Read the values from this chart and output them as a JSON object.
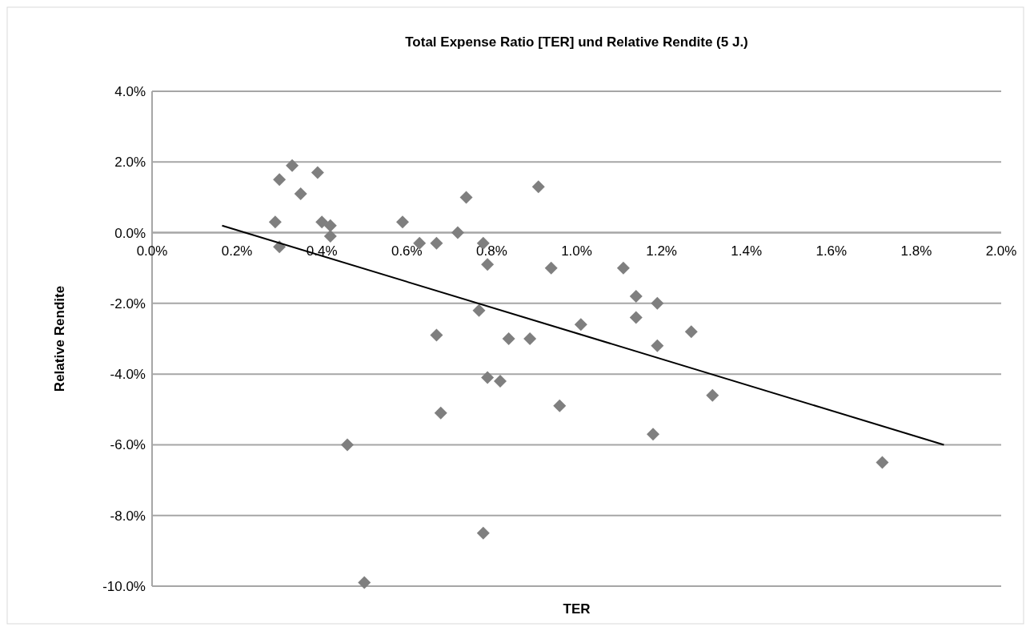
{
  "chart_data": {
    "type": "scatter",
    "title": "Total Expense Ratio [TER] und Relative Rendite (5 J.)",
    "xlabel": "TER",
    "ylabel": "Relative Rendite",
    "xlim": [
      0,
      2
    ],
    "ylim": [
      -10,
      4
    ],
    "xticks": [
      {
        "value": 0,
        "label": "0.0%"
      },
      {
        "value": 0.2,
        "label": "0.2%"
      },
      {
        "value": 0.4,
        "label": "0.4%"
      },
      {
        "value": 0.6,
        "label": "0.6%"
      },
      {
        "value": 0.8,
        "label": "0.8%"
      },
      {
        "value": 1,
        "label": "1.0%"
      },
      {
        "value": 1.2,
        "label": "1.2%"
      },
      {
        "value": 1.4,
        "label": "1.4%"
      },
      {
        "value": 1.6,
        "label": "1.6%"
      },
      {
        "value": 1.8,
        "label": "1.8%"
      },
      {
        "value": 2,
        "label": "2.0%"
      }
    ],
    "yticks": [
      {
        "value": -10,
        "label": "-10.0%"
      },
      {
        "value": -8,
        "label": "-8.0%"
      },
      {
        "value": -6,
        "label": "-6.0%"
      },
      {
        "value": -4,
        "label": "-4.0%"
      },
      {
        "value": -2,
        "label": "-2.0%"
      },
      {
        "value": 0,
        "label": "0.0%"
      },
      {
        "value": 2,
        "label": "2.0%"
      },
      {
        "value": 4,
        "label": "4.0%"
      }
    ],
    "grid": "y",
    "series": [
      {
        "color": "#7f7f7f",
        "marker": "diamond",
        "x": [
          0.29,
          0.3,
          0.3,
          0.33,
          0.35,
          0.39,
          0.4,
          0.42,
          0.42,
          0.46,
          0.5,
          0.59,
          0.63,
          0.67,
          0.67,
          0.68,
          0.72,
          0.74,
          0.78,
          0.79,
          0.77,
          0.79,
          0.78,
          0.82,
          0.84,
          0.89,
          0.91,
          0.94,
          0.96,
          1.01,
          1.11,
          1.14,
          1.14,
          1.19,
          1.18,
          1.19,
          1.27,
          1.32,
          1.72
        ],
        "values": [
          0.3,
          -0.4,
          1.5,
          1.9,
          1.1,
          1.7,
          0.3,
          0.2,
          -0.1,
          -6.0,
          -9.9,
          0.3,
          -0.3,
          -0.3,
          -2.9,
          -5.1,
          0.0,
          1.0,
          -0.3,
          -0.9,
          -2.2,
          -4.1,
          -8.5,
          -4.2,
          -3.0,
          -3.0,
          1.3,
          -1.0,
          -4.9,
          -2.6,
          -1.0,
          -1.8,
          -2.4,
          -2.0,
          -5.7,
          -3.2,
          -2.8,
          -4.6,
          -6.5
        ]
      },
      {
        "type": "line",
        "color": "#000000",
        "marker": "none",
        "x": [
          0.165,
          1.865
        ],
        "values": [
          0.2,
          -6.0
        ]
      }
    ]
  }
}
